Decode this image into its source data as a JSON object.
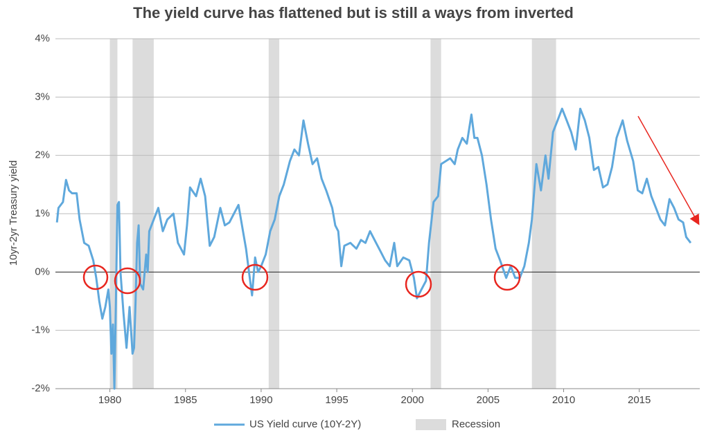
{
  "chart_data": {
    "type": "line",
    "title": "The yield curve has flattened but is still a ways from inverted",
    "y_label": "10yr-2yr Treasury yield",
    "x": [
      1976.5,
      1976.6,
      1976.9,
      1977.1,
      1977.3,
      1977.5,
      1977.8,
      1978.0,
      1978.3,
      1978.6,
      1978.9,
      1979.1,
      1979.3,
      1979.5,
      1979.7,
      1979.9,
      1980.0,
      1980.1,
      1980.2,
      1980.3,
      1980.4,
      1980.5,
      1980.6,
      1980.7,
      1980.9,
      1981.1,
      1981.3,
      1981.5,
      1981.6,
      1981.7,
      1981.8,
      1981.9,
      1982.0,
      1982.2,
      1982.4,
      1982.5,
      1982.6,
      1982.9,
      1983.2,
      1983.5,
      1983.8,
      1984.2,
      1984.5,
      1984.9,
      1985.1,
      1985.3,
      1985.7,
      1986.0,
      1986.3,
      1986.6,
      1986.9,
      1987.3,
      1987.6,
      1987.9,
      1988.2,
      1988.5,
      1988.8,
      1989.0,
      1989.2,
      1989.4,
      1989.6,
      1989.8,
      1990.0,
      1990.3,
      1990.6,
      1990.9,
      1991.2,
      1991.5,
      1991.9,
      1992.2,
      1992.5,
      1992.8,
      1993.1,
      1993.4,
      1993.7,
      1994.0,
      1994.3,
      1994.7,
      1994.9,
      1995.1,
      1995.3,
      1995.5,
      1995.9,
      1996.3,
      1996.6,
      1996.9,
      1997.2,
      1997.6,
      1997.9,
      1998.2,
      1998.5,
      1998.8,
      1999.0,
      1999.4,
      1999.8,
      2000.1,
      2000.3,
      2000.6,
      2000.9,
      2001.1,
      2001.4,
      2001.7,
      2001.9,
      2002.2,
      2002.5,
      2002.8,
      2003.0,
      2003.3,
      2003.6,
      2003.9,
      2004.1,
      2004.3,
      2004.6,
      2004.9,
      2005.2,
      2005.5,
      2005.8,
      2006.0,
      2006.2,
      2006.5,
      2006.8,
      2007.1,
      2007.4,
      2007.7,
      2007.9,
      2008.2,
      2008.5,
      2008.8,
      2009.0,
      2009.3,
      2009.6,
      2009.9,
      2010.2,
      2010.5,
      2010.8,
      2011.1,
      2011.4,
      2011.7,
      2012.0,
      2012.3,
      2012.6,
      2012.9,
      2013.2,
      2013.5,
      2013.9,
      2014.2,
      2014.6,
      2014.9,
      2015.2,
      2015.5,
      2015.8,
      2016.1,
      2016.4,
      2016.7,
      2017.0,
      2017.3,
      2017.6,
      2017.9,
      2018.1,
      2018.4
    ],
    "series": [
      {
        "name": "US Yield curve (10Y-2Y)",
        "color": "#5fa8dc",
        "values": [
          0.85,
          1.1,
          1.2,
          1.58,
          1.4,
          1.35,
          1.35,
          0.9,
          0.5,
          0.45,
          0.2,
          -0.1,
          -0.5,
          -0.8,
          -0.6,
          -0.3,
          -0.6,
          -1.4,
          -0.9,
          -2.0,
          -0.5,
          1.15,
          1.2,
          0.0,
          -0.7,
          -1.3,
          -0.6,
          -1.4,
          -1.3,
          -0.5,
          0.5,
          0.8,
          -0.2,
          -0.3,
          0.3,
          0.0,
          0.7,
          0.9,
          1.1,
          0.7,
          0.9,
          1.0,
          0.5,
          0.3,
          0.8,
          1.45,
          1.3,
          1.6,
          1.3,
          0.45,
          0.6,
          1.1,
          0.8,
          0.85,
          1.0,
          1.15,
          0.7,
          0.4,
          0.0,
          -0.4,
          0.25,
          0.0,
          0.1,
          0.3,
          0.7,
          0.9,
          1.3,
          1.5,
          1.9,
          2.1,
          2.0,
          2.6,
          2.2,
          1.85,
          1.95,
          1.6,
          1.4,
          1.1,
          0.8,
          0.7,
          0.1,
          0.45,
          0.5,
          0.4,
          0.55,
          0.5,
          0.7,
          0.5,
          0.35,
          0.2,
          0.1,
          0.5,
          0.1,
          0.25,
          0.2,
          -0.1,
          -0.45,
          -0.3,
          -0.15,
          0.5,
          1.2,
          1.3,
          1.85,
          1.9,
          1.95,
          1.85,
          2.1,
          2.3,
          2.2,
          2.7,
          2.3,
          2.3,
          2.0,
          1.5,
          0.9,
          0.4,
          0.2,
          0.05,
          -0.1,
          0.1,
          -0.1,
          -0.1,
          0.1,
          0.5,
          0.9,
          1.85,
          1.4,
          2.0,
          1.6,
          2.4,
          2.6,
          2.8,
          2.6,
          2.4,
          2.1,
          2.8,
          2.6,
          2.3,
          1.75,
          1.8,
          1.45,
          1.5,
          1.8,
          2.3,
          2.6,
          2.25,
          1.9,
          1.4,
          1.35,
          1.6,
          1.3,
          1.1,
          0.9,
          0.8,
          1.25,
          1.1,
          0.9,
          0.85,
          0.6,
          0.5
        ]
      }
    ],
    "recessions": {
      "name": "Recession",
      "color": "#dcdcdc",
      "periods": [
        [
          1980.0,
          1980.5
        ],
        [
          1981.5,
          1982.9
        ],
        [
          1990.5,
          1991.2
        ],
        [
          2001.2,
          2001.9
        ],
        [
          2007.9,
          2009.5
        ]
      ]
    },
    "xlim": [
      1976.4,
      2019.0
    ],
    "xticks": [
      1980,
      1985,
      1990,
      1995,
      2000,
      2005,
      2010,
      2015
    ],
    "ylim": [
      -2,
      4
    ],
    "yticks": [
      {
        "value": -2,
        "label": "-2%"
      },
      {
        "value": -1,
        "label": "-1%"
      },
      {
        "value": 0,
        "label": "0%"
      },
      {
        "value": 1,
        "label": "1%"
      },
      {
        "value": 2,
        "label": "2%"
      },
      {
        "value": 3,
        "label": "3%"
      },
      {
        "value": 4,
        "label": "4%"
      }
    ],
    "grid": true
  }
}
